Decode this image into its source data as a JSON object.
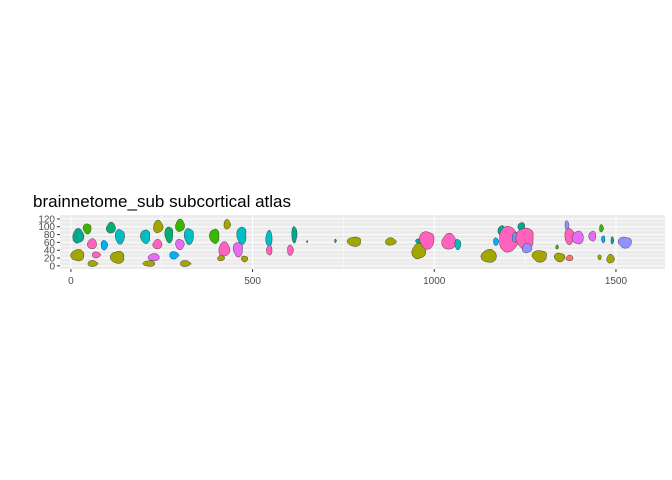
{
  "chart_data": {
    "type": "polygon-map",
    "title": "brainnetome_sub subcortical atlas",
    "xlabel": "",
    "ylabel": "",
    "xlim": [
      -30,
      1635
    ],
    "ylim": [
      -8,
      130
    ],
    "x_ticks": [
      0,
      500,
      1000,
      1500
    ],
    "y_ticks": [
      0,
      20,
      40,
      60,
      80,
      100,
      120
    ],
    "grid": true,
    "legend": "none",
    "colors": {
      "panel_background": "#ebebeb",
      "grid_major": "#ffffff",
      "region_outline": "#333333",
      "olive": "#a3a500",
      "green": "#39b600",
      "teal": "#00bfc4",
      "emerald": "#00b06f",
      "azure": "#00b0f6",
      "blue": "#619cff",
      "magenta": "#e76bf3",
      "pink": "#ff62bc",
      "purple": "#9590ff",
      "salmon": "#f8766d"
    },
    "regions": [
      {
        "x": 20,
        "y": 76,
        "rx": 16,
        "ry": 20,
        "color": "#00a98f"
      },
      {
        "x": 45,
        "y": 95,
        "rx": 12,
        "ry": 14,
        "color": "#39b600"
      },
      {
        "x": 110,
        "y": 97,
        "rx": 13,
        "ry": 15,
        "color": "#00b06f"
      },
      {
        "x": 135,
        "y": 75,
        "rx": 14,
        "ry": 20,
        "color": "#00bfc4"
      },
      {
        "x": 58,
        "y": 56,
        "rx": 13,
        "ry": 14,
        "color": "#ff62bc"
      },
      {
        "x": 92,
        "y": 53,
        "rx": 10,
        "ry": 13,
        "color": "#00b0f6"
      },
      {
        "x": 18,
        "y": 27,
        "rx": 19,
        "ry": 16,
        "color": "#a3a500"
      },
      {
        "x": 70,
        "y": 28,
        "rx": 13,
        "ry": 8,
        "color": "#ff62bc"
      },
      {
        "x": 128,
        "y": 22,
        "rx": 20,
        "ry": 17,
        "color": "#a3a500"
      },
      {
        "x": 60,
        "y": 6,
        "rx": 15,
        "ry": 8,
        "color": "#a3a500"
      },
      {
        "x": 205,
        "y": 75,
        "rx": 14,
        "ry": 19,
        "color": "#00bfc4"
      },
      {
        "x": 240,
        "y": 100,
        "rx": 14,
        "ry": 17,
        "color": "#a3a500"
      },
      {
        "x": 270,
        "y": 80,
        "rx": 12,
        "ry": 22,
        "color": "#00b06f"
      },
      {
        "x": 300,
        "y": 103,
        "rx": 13,
        "ry": 17,
        "color": "#39b600"
      },
      {
        "x": 325,
        "y": 76,
        "rx": 14,
        "ry": 22,
        "color": "#00bfc4"
      },
      {
        "x": 238,
        "y": 55,
        "rx": 13,
        "ry": 13,
        "color": "#ff62bc"
      },
      {
        "x": 300,
        "y": 55,
        "rx": 13,
        "ry": 14,
        "color": "#e76bf3"
      },
      {
        "x": 228,
        "y": 22,
        "rx": 16,
        "ry": 10,
        "color": "#e76bf3"
      },
      {
        "x": 284,
        "y": 27,
        "rx": 14,
        "ry": 10,
        "color": "#00b0f6"
      },
      {
        "x": 215,
        "y": 6,
        "rx": 17,
        "ry": 8,
        "color": "#a3a500"
      },
      {
        "x": 315,
        "y": 6,
        "rx": 16,
        "ry": 8,
        "color": "#a3a500"
      },
      {
        "x": 395,
        "y": 76,
        "rx": 14,
        "ry": 20,
        "color": "#39b600"
      },
      {
        "x": 430,
        "y": 106,
        "rx": 10,
        "ry": 13,
        "color": "#a3a500"
      },
      {
        "x": 470,
        "y": 78,
        "rx": 14,
        "ry": 24,
        "color": "#00bfc4"
      },
      {
        "x": 422,
        "y": 42,
        "rx": 16,
        "ry": 20,
        "color": "#ff62bc"
      },
      {
        "x": 460,
        "y": 42,
        "rx": 14,
        "ry": 20,
        "color": "#e76bf3"
      },
      {
        "x": 413,
        "y": 20,
        "rx": 10,
        "ry": 8,
        "color": "#a3a500"
      },
      {
        "x": 478,
        "y": 18,
        "rx": 10,
        "ry": 8,
        "color": "#a3a500"
      },
      {
        "x": 545,
        "y": 70,
        "rx": 9,
        "ry": 22,
        "color": "#00bfc4"
      },
      {
        "x": 615,
        "y": 80,
        "rx": 8,
        "ry": 22,
        "color": "#00a98f"
      },
      {
        "x": 546,
        "y": 40,
        "rx": 8,
        "ry": 14,
        "color": "#ff62bc"
      },
      {
        "x": 604,
        "y": 40,
        "rx": 9,
        "ry": 14,
        "color": "#ff62bc"
      },
      {
        "x": 650,
        "y": 62,
        "rx": 2,
        "ry": 3,
        "color": "#00a98f"
      },
      {
        "x": 728,
        "y": 64,
        "rx": 3,
        "ry": 5,
        "color": "#00a98f"
      },
      {
        "x": 780,
        "y": 62,
        "rx": 20,
        "ry": 13,
        "color": "#a3a500"
      },
      {
        "x": 880,
        "y": 62,
        "rx": 16,
        "ry": 10,
        "color": "#a3a500"
      },
      {
        "x": 958,
        "y": 63,
        "rx": 10,
        "ry": 7,
        "color": "#00a98f"
      },
      {
        "x": 957,
        "y": 37,
        "rx": 20,
        "ry": 21,
        "color": "#a3a500"
      },
      {
        "x": 980,
        "y": 66,
        "rx": 22,
        "ry": 24,
        "color": "#ff62bc"
      },
      {
        "x": 1040,
        "y": 62,
        "rx": 20,
        "ry": 22,
        "color": "#ff62bc"
      },
      {
        "x": 1065,
        "y": 55,
        "rx": 9,
        "ry": 14,
        "color": "#00bfc4"
      },
      {
        "x": 1150,
        "y": 25,
        "rx": 22,
        "ry": 18,
        "color": "#a3a500"
      },
      {
        "x": 1170,
        "y": 62,
        "rx": 8,
        "ry": 10,
        "color": "#00b0f6"
      },
      {
        "x": 1185,
        "y": 90,
        "rx": 10,
        "ry": 14,
        "color": "#00a98f"
      },
      {
        "x": 1205,
        "y": 68,
        "rx": 30,
        "ry": 34,
        "color": "#ff62bc"
      },
      {
        "x": 1240,
        "y": 100,
        "rx": 10,
        "ry": 12,
        "color": "#00a98f"
      },
      {
        "x": 1225,
        "y": 73,
        "rx": 12,
        "ry": 13,
        "color": "#619cff"
      },
      {
        "x": 1250,
        "y": 70,
        "rx": 26,
        "ry": 30,
        "color": "#ff62bc"
      },
      {
        "x": 1255,
        "y": 45,
        "rx": 14,
        "ry": 13,
        "color": "#9590ff"
      },
      {
        "x": 1290,
        "y": 25,
        "rx": 22,
        "ry": 16,
        "color": "#a3a500"
      },
      {
        "x": 1338,
        "y": 48,
        "rx": 4,
        "ry": 6,
        "color": "#39b600"
      },
      {
        "x": 1345,
        "y": 22,
        "rx": 16,
        "ry": 12,
        "color": "#a3a500"
      },
      {
        "x": 1372,
        "y": 20,
        "rx": 10,
        "ry": 8,
        "color": "#f8766d"
      },
      {
        "x": 1372,
        "y": 76,
        "rx": 14,
        "ry": 22,
        "color": "#ff62bc"
      },
      {
        "x": 1395,
        "y": 72,
        "rx": 16,
        "ry": 18,
        "color": "#e76bf3"
      },
      {
        "x": 1365,
        "y": 104,
        "rx": 6,
        "ry": 12,
        "color": "#9590ff"
      },
      {
        "x": 1435,
        "y": 76,
        "rx": 10,
        "ry": 14,
        "color": "#e76bf3"
      },
      {
        "x": 1460,
        "y": 96,
        "rx": 6,
        "ry": 10,
        "color": "#39b600"
      },
      {
        "x": 1465,
        "y": 68,
        "rx": 5,
        "ry": 10,
        "color": "#00b0f6"
      },
      {
        "x": 1490,
        "y": 65,
        "rx": 4,
        "ry": 10,
        "color": "#00a98f"
      },
      {
        "x": 1455,
        "y": 22,
        "rx": 5,
        "ry": 7,
        "color": "#a3a500"
      },
      {
        "x": 1485,
        "y": 18,
        "rx": 11,
        "ry": 12,
        "color": "#a3a500"
      },
      {
        "x": 1525,
        "y": 60,
        "rx": 20,
        "ry": 15,
        "color": "#9590ff"
      }
    ]
  }
}
